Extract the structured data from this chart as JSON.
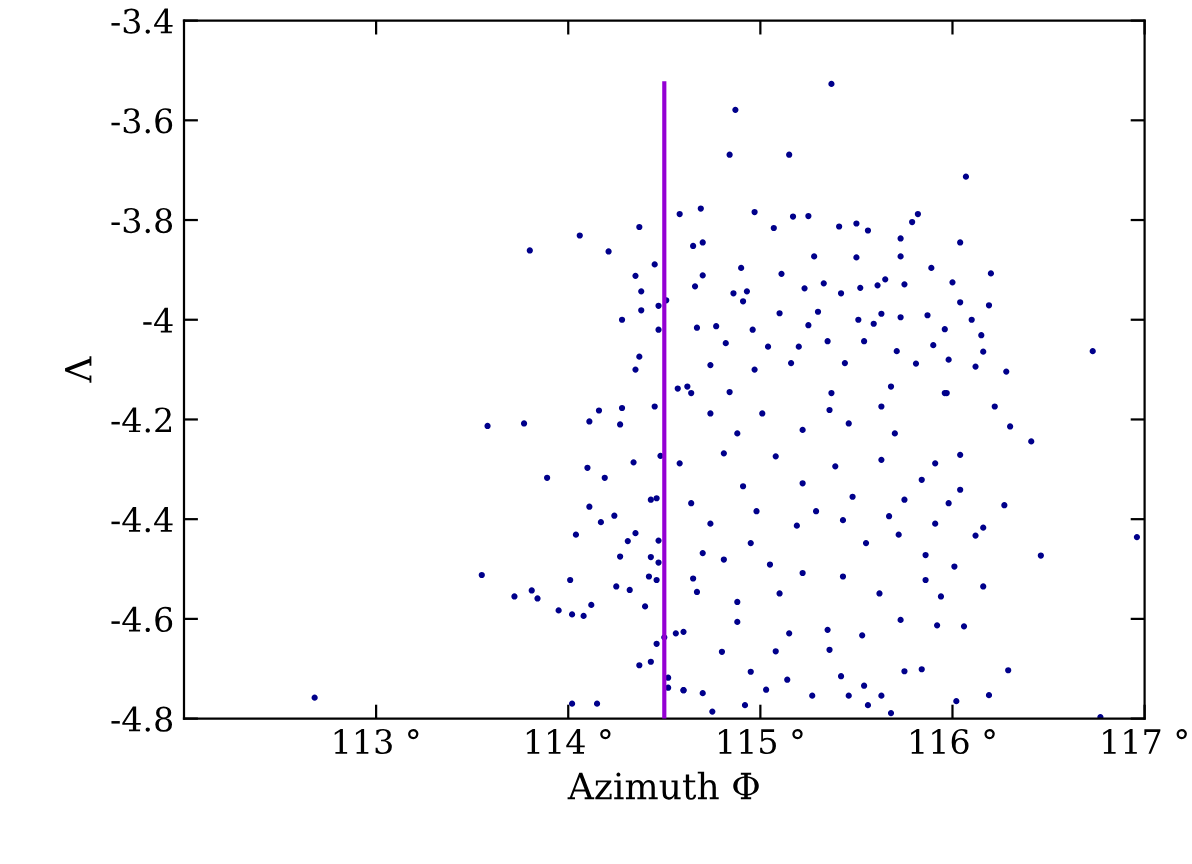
{
  "chart_data": {
    "type": "scatter",
    "xlabel": "Azimuth Φ",
    "ylabel": "Λ",
    "xlim": [
      112,
      117
    ],
    "ylim": [
      -4.8,
      -3.4
    ],
    "xticks": [
      {
        "value": 113,
        "label": "113 °"
      },
      {
        "value": 114,
        "label": "114 °"
      },
      {
        "value": 115,
        "label": "115 °"
      },
      {
        "value": 116,
        "label": "116 °"
      },
      {
        "value": 117,
        "label": "117 °"
      }
    ],
    "yticks": [
      {
        "value": -4.8,
        "label": "-4.8"
      },
      {
        "value": -4.6,
        "label": "-4.6"
      },
      {
        "value": -4.4,
        "label": "-4.4"
      },
      {
        "value": -4.2,
        "label": "-4.2"
      },
      {
        "value": -4.0,
        "label": "-4"
      },
      {
        "value": -3.8,
        "label": "-3.8"
      },
      {
        "value": -3.6,
        "label": "-3.6"
      },
      {
        "value": -3.4,
        "label": "-3.4"
      }
    ],
    "grid": false,
    "legend": false,
    "series": [
      {
        "color": "#00008b",
        "marker": "circle",
        "x": [
          114.58,
          114.37,
          114.06,
          113.8,
          114.21,
          114.35,
          114.45,
          114.38,
          114.28,
          114.38,
          114.51,
          114.47,
          114.47,
          114.37,
          114.35,
          114.57,
          115.37,
          114.87,
          114.84,
          115.15,
          116.07,
          114.69,
          114.97,
          115.17,
          115.25,
          115.07,
          115.41,
          115.5,
          115.56,
          115.82,
          115.79,
          115.73,
          116.04,
          114.65,
          114.7,
          115.28,
          115.5,
          115.73,
          114.9,
          115.89,
          116.2,
          114.7,
          115.11,
          115.65,
          116.0,
          114.66,
          115.23,
          115.33,
          115.42,
          115.52,
          115.61,
          115.75,
          116.04,
          114.86,
          114.91,
          114.93,
          116.19,
          116.1,
          115.1,
          115.3,
          115.51,
          115.63,
          115.73,
          115.87,
          114.67,
          114.77,
          114.96,
          115.25,
          115.59,
          115.96,
          116.15,
          114.82,
          115.04,
          115.2,
          115.35,
          115.54,
          115.71,
          115.9,
          116.16,
          116.73,
          116.28,
          116.12,
          114.74,
          114.97,
          115.16,
          115.44,
          115.81,
          115.98,
          114.62,
          114.84,
          115.37,
          115.68,
          115.97,
          113.58,
          113.77,
          114.16,
          114.28,
          114.11,
          114.27,
          114.45,
          113.89,
          114.1,
          114.19,
          114.34,
          114.11,
          114.24,
          114.17,
          114.04,
          114.35,
          114.31,
          113.55,
          113.72,
          113.81,
          113.84,
          114.01,
          113.95,
          114.02,
          114.08,
          114.12,
          114.27,
          114.25,
          114.32,
          114.4,
          114.46,
          114.5,
          114.43,
          114.37,
          114.52,
          114.52,
          114.6,
          112.68,
          114.02,
          114.15,
          114.43,
          114.42,
          114.46,
          114.47,
          114.47,
          114.48,
          114.43,
          114.46,
          114.56,
          116.96,
          116.46,
          116.41,
          116.3,
          116.22,
          116.27,
          116.16,
          116.29,
          116.19,
          116.77,
          116.02,
          116.06,
          116.04,
          116.16,
          116.12,
          115.84,
          115.75,
          115.63,
          115.56,
          115.68,
          115.46,
          115.54,
          115.42,
          115.27,
          115.14,
          115.03,
          114.92,
          114.75,
          114.6,
          114.7,
          114.8,
          114.88,
          114.95,
          115.08,
          115.15,
          115.35,
          115.36,
          115.43,
          115.53,
          115.62,
          115.73,
          115.86,
          115.92,
          115.94,
          116.01,
          115.72,
          115.86,
          115.55,
          115.22,
          115.1,
          114.88,
          114.67,
          114.6,
          114.65,
          114.81,
          115.05,
          115.43,
          115.19,
          114.95,
          114.7,
          114.74,
          114.98,
          115.29,
          115.67,
          115.91,
          115.98,
          115.75,
          115.48,
          115.22,
          114.91,
          114.64,
          114.58,
          114.81,
          115.08,
          115.39,
          115.63,
          115.84,
          116.04,
          115.91,
          115.7,
          115.46,
          115.22,
          115.01,
          114.74,
          115.36,
          115.63,
          115.96,
          114.64,
          114.88
        ],
        "values": [
          -3.788,
          -3.814,
          -3.831,
          -3.861,
          -3.863,
          -3.912,
          -3.889,
          -3.943,
          -4.0,
          -3.981,
          -3.961,
          -3.972,
          -4.02,
          -4.074,
          -4.1,
          -4.138,
          -3.527,
          -3.579,
          -3.669,
          -3.669,
          -3.713,
          -3.777,
          -3.784,
          -3.793,
          -3.792,
          -3.816,
          -3.813,
          -3.807,
          -3.821,
          -3.788,
          -3.804,
          -3.837,
          -3.845,
          -3.852,
          -3.845,
          -3.873,
          -3.875,
          -3.873,
          -3.896,
          -3.896,
          -3.907,
          -3.911,
          -3.908,
          -3.919,
          -3.925,
          -3.933,
          -3.937,
          -3.927,
          -3.947,
          -3.936,
          -3.931,
          -3.929,
          -3.965,
          -3.947,
          -3.963,
          -3.943,
          -3.971,
          -4.0,
          -3.987,
          -3.984,
          -4.0,
          -3.988,
          -3.995,
          -3.991,
          -4.016,
          -4.013,
          -4.02,
          -4.011,
          -4.008,
          -4.019,
          -4.031,
          -4.047,
          -4.054,
          -4.054,
          -4.043,
          -4.043,
          -4.063,
          -4.051,
          -4.064,
          -4.063,
          -4.104,
          -4.094,
          -4.091,
          -4.1,
          -4.087,
          -4.087,
          -4.088,
          -4.08,
          -4.134,
          -4.145,
          -4.147,
          -4.134,
          -4.147,
          -4.213,
          -4.208,
          -4.182,
          -4.177,
          -4.204,
          -4.21,
          -4.174,
          -4.317,
          -4.297,
          -4.317,
          -4.286,
          -4.375,
          -4.393,
          -4.406,
          -4.431,
          -4.428,
          -4.444,
          -4.512,
          -4.555,
          -4.543,
          -4.559,
          -4.522,
          -4.583,
          -4.591,
          -4.594,
          -4.572,
          -4.475,
          -4.535,
          -4.542,
          -4.575,
          -4.65,
          -4.637,
          -4.686,
          -4.693,
          -4.718,
          -4.738,
          -4.743,
          -4.758,
          -4.77,
          -4.77,
          -4.476,
          -4.515,
          -4.522,
          -4.487,
          -4.443,
          -4.273,
          -4.361,
          -4.358,
          -4.629,
          -4.436,
          -4.473,
          -4.244,
          -4.214,
          -4.174,
          -4.372,
          -4.535,
          -4.703,
          -4.753,
          -4.797,
          -4.765,
          -4.615,
          -4.271,
          -4.417,
          -4.433,
          -4.701,
          -4.705,
          -4.754,
          -4.773,
          -4.789,
          -4.754,
          -4.734,
          -4.715,
          -4.754,
          -4.722,
          -4.742,
          -4.773,
          -4.786,
          -4.743,
          -4.749,
          -4.666,
          -4.606,
          -4.706,
          -4.665,
          -4.629,
          -4.622,
          -4.662,
          -4.515,
          -4.633,
          -4.549,
          -4.602,
          -4.522,
          -4.613,
          -4.555,
          -4.495,
          -4.431,
          -4.472,
          -4.448,
          -4.508,
          -4.549,
          -4.566,
          -4.546,
          -4.626,
          -4.519,
          -4.481,
          -4.491,
          -4.402,
          -4.413,
          -4.448,
          -4.468,
          -4.409,
          -4.384,
          -4.384,
          -4.394,
          -4.409,
          -4.368,
          -4.361,
          -4.355,
          -4.328,
          -4.334,
          -4.368,
          -4.288,
          -4.268,
          -4.274,
          -4.294,
          -4.281,
          -4.321,
          -4.341,
          -4.288,
          -4.228,
          -4.208,
          -4.221,
          -4.188,
          -4.188,
          -4.181,
          -4.174,
          -4.147,
          -4.147,
          -4.228
        ]
      },
      {
        "type": "line",
        "marker": "none",
        "color": "#9400d3",
        "x": [
          114.5,
          114.5
        ],
        "values": [
          -4.8,
          -3.526
        ]
      }
    ]
  }
}
